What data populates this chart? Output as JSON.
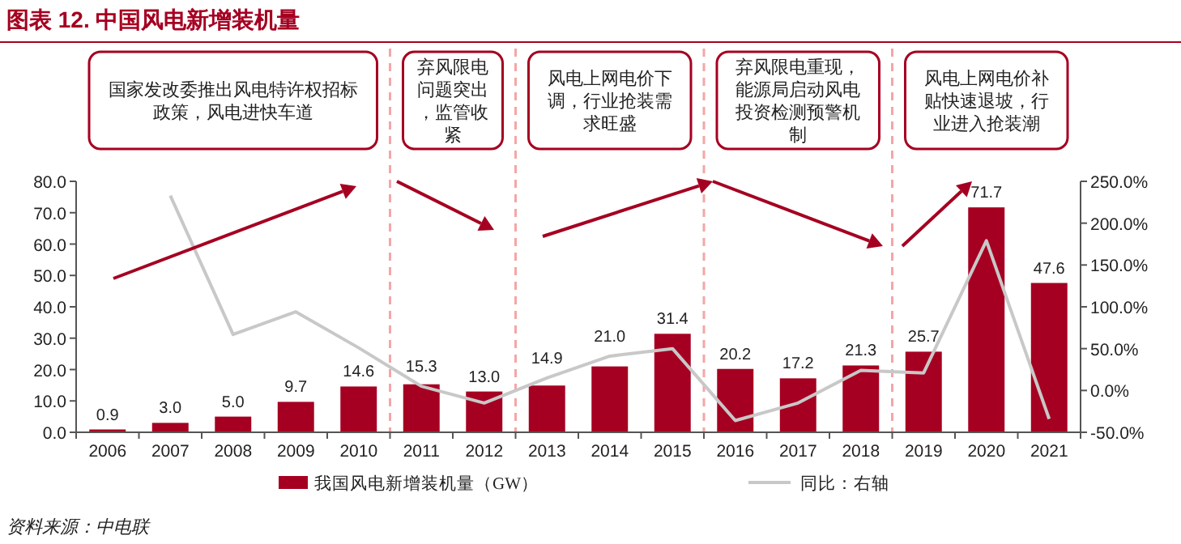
{
  "chart_data": {
    "type": "bar",
    "title": "图表 12. 中国风电新增装机量",
    "categories": [
      "2006",
      "2007",
      "2008",
      "2009",
      "2010",
      "2011",
      "2012",
      "2013",
      "2014",
      "2015",
      "2016",
      "2017",
      "2018",
      "2019",
      "2020",
      "2021"
    ],
    "series": [
      {
        "name": "我国风电新增装机量（GW）",
        "color": "#a50021",
        "values": [
          0.9,
          3.0,
          5.0,
          9.7,
          14.6,
          15.3,
          13.0,
          14.9,
          21.0,
          31.4,
          20.2,
          17.2,
          21.3,
          25.7,
          71.7,
          47.6
        ],
        "value_labels": [
          "0.9",
          "3.0",
          "5.0",
          "9.7",
          "14.6",
          "15.3",
          "13.0",
          "14.9",
          "21.0",
          "31.4",
          "20.2",
          "17.2",
          "21.3",
          "25.7",
          "71.7",
          "47.6"
        ]
      },
      {
        "name": "同比：右轴",
        "type": "line",
        "axis": "y2",
        "color": "#c8c8c8",
        "values": [
          null,
          233,
          67,
          94,
          51,
          5,
          -15,
          15,
          41,
          50,
          -36,
          -15,
          24,
          21,
          179,
          -34
        ]
      }
    ],
    "ylim": [
      0,
      80
    ],
    "yticks": [
      {
        "value": 0,
        "label": "0.0"
      },
      {
        "value": 10,
        "label": "10.0"
      },
      {
        "value": 20,
        "label": "20.0"
      },
      {
        "value": 30,
        "label": "30.0"
      },
      {
        "value": 40,
        "label": "40.0"
      },
      {
        "value": 50,
        "label": "50.0"
      },
      {
        "value": 60,
        "label": "60.0"
      },
      {
        "value": 70,
        "label": "70.0"
      },
      {
        "value": 80,
        "label": "80.0"
      }
    ],
    "y2lim": [
      -50,
      250
    ],
    "y2ticks": [
      {
        "value": -50,
        "label": "-50.0%"
      },
      {
        "value": 0,
        "label": "0.0%"
      },
      {
        "value": 50,
        "label": "50.0%"
      },
      {
        "value": 100,
        "label": "100.0%"
      },
      {
        "value": 150,
        "label": "150.0%"
      },
      {
        "value": 200,
        "label": "200.0%"
      },
      {
        "value": 250,
        "label": "250.0%"
      }
    ],
    "annotations": [
      "国家发改委推出风电特许权招标政策，风电进快车道",
      "弃风限电问题突出，监管收紧",
      "风电上网电价下调，行业抢装需求旺盛",
      "弃风限电重现，能源局启动风电投资检测预警机制",
      "风电上网电价补贴快速退坡，行业进入抢装潮",
      "资料来源：中电联"
    ],
    "legend": "bottom",
    "grid": false
  }
}
